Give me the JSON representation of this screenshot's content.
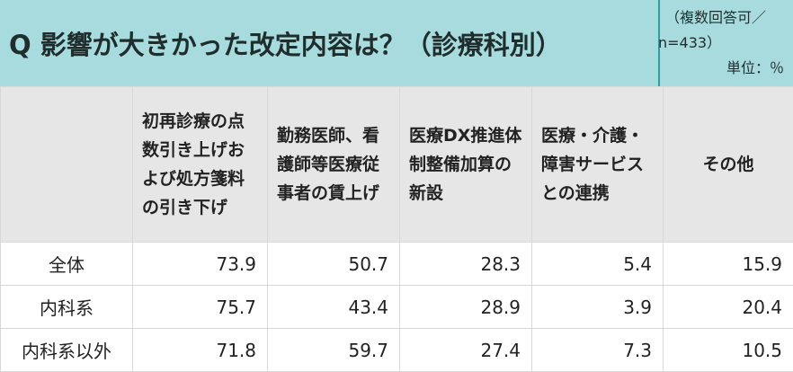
{
  "header": {
    "title": "Q 影響が大きかった改定内容は？（診療科別）",
    "note_line1": "（複数回答可／",
    "note_line2": "n=433）",
    "note_line3": "単位：％"
  },
  "chart_data": {
    "type": "table",
    "title": "Q 影響が大きかった改定内容は？（診療科別）",
    "columns": [
      "初再診療の点数引き上げおよび処方箋料の引き下げ",
      "勤務医師、看護師等医療従事者の賃上げ",
      "医療DX推進体制整備加算の新設",
      "医療・介護・障害サービスとの連携",
      "その他"
    ],
    "rows": [
      {
        "label": "全体",
        "values": [
          "73.9",
          "50.7",
          "28.3",
          "5.4",
          "15.9"
        ]
      },
      {
        "label": "内科系",
        "values": [
          "75.7",
          "43.4",
          "28.9",
          "3.9",
          "20.4"
        ]
      },
      {
        "label": "内科系以外",
        "values": [
          "71.8",
          "59.7",
          "27.4",
          "7.3",
          "10.5"
        ]
      }
    ],
    "unit": "％",
    "n": "n=433"
  }
}
